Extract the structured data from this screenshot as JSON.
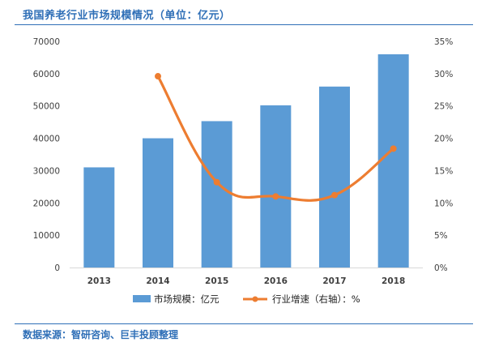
{
  "title": "我国养老行业市场规模情况（单位：亿元）",
  "source": "数据来源：智研咨询、巨丰投顾整理",
  "colors": {
    "bar": "#5b9bd5",
    "line": "#ed7d31",
    "title": "#2f6fb7",
    "grid": "#d9d9d9",
    "axis_text": "#404040"
  },
  "chart_data": {
    "type": "bar",
    "categories": [
      "2013",
      "2014",
      "2015",
      "2016",
      "2017",
      "2018"
    ],
    "series": [
      {
        "name": "市场规模：亿元",
        "type": "bar",
        "axis": "left",
        "values": [
          31000,
          40000,
          45300,
          50200,
          56000,
          66000
        ]
      },
      {
        "name": "行业增速（右轴）：%",
        "type": "line",
        "axis": "right",
        "values": [
          null,
          29.6,
          13.2,
          11.0,
          11.2,
          18.4
        ]
      }
    ],
    "y_left": {
      "ticks": [
        "0",
        "10000",
        "20000",
        "30000",
        "40000",
        "50000",
        "60000",
        "70000"
      ],
      "ylim": [
        0,
        70000
      ]
    },
    "y_right": {
      "ticks": [
        "0%",
        "5%",
        "10%",
        "15%",
        "20%",
        "25%",
        "30%",
        "35%"
      ],
      "ylim": [
        0,
        35
      ]
    },
    "grid": false,
    "legend": "bottom"
  }
}
